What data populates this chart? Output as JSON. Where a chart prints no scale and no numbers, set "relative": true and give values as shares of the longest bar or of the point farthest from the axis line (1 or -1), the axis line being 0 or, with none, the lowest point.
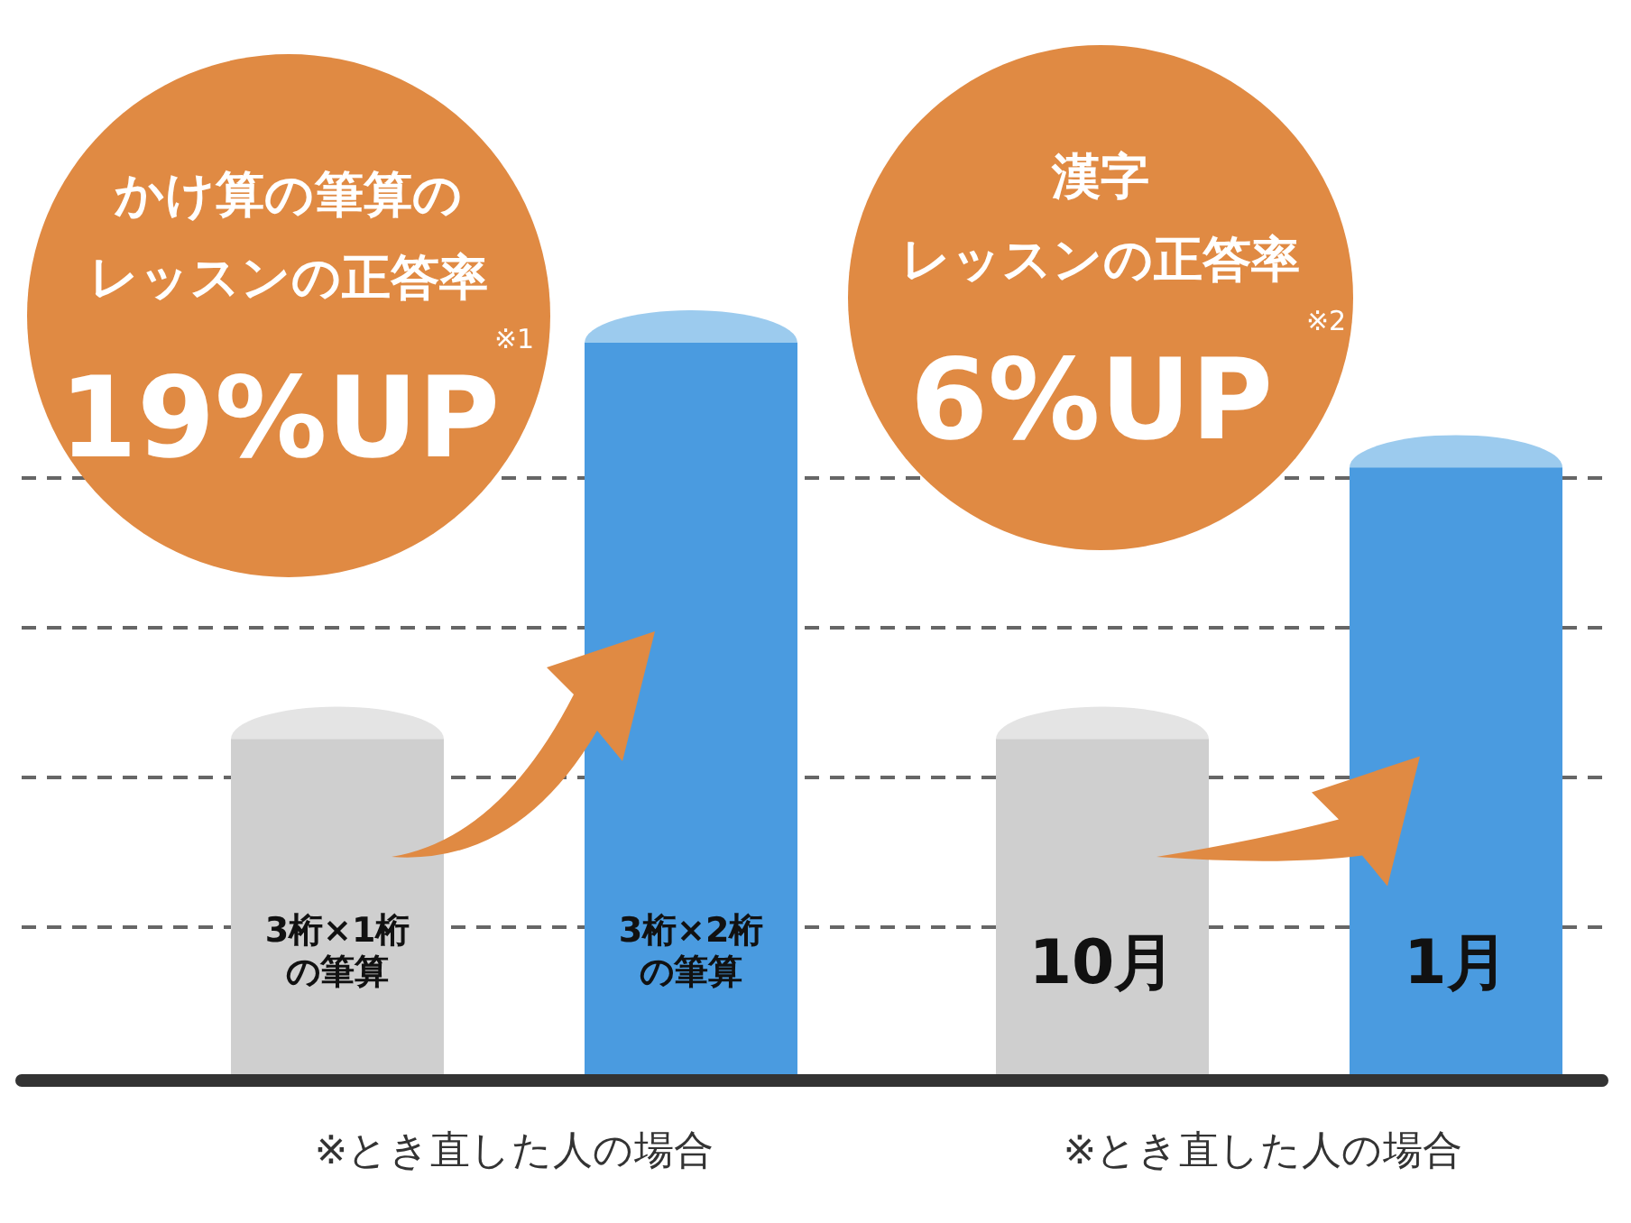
{
  "chart_data": {
    "type": "bar",
    "relative": true,
    "categories": [
      "3桁×1桁の筆算",
      "3桁×2桁の筆算",
      "10月",
      "1月"
    ],
    "values": [
      0.46,
      1,
      0.46,
      0.83
    ],
    "colors": [
      "#cfcfcf",
      "#4a9be0",
      "#cfcfcf",
      "#4a9be0"
    ],
    "grid": "y",
    "annotations": [
      "かけ算の筆算の",
      "レッスンの正答率",
      "19%UP",
      "※1",
      "漢字",
      "レッスンの正答率",
      "6%UP",
      "※2",
      "※とき直した人の場合",
      "※とき直した人の場合"
    ]
  }
}
